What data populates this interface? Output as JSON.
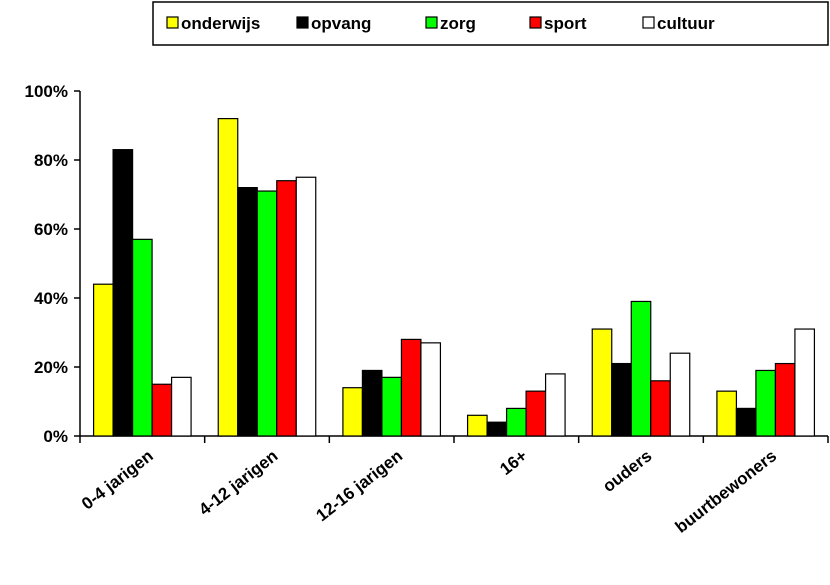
{
  "chart_data": {
    "type": "bar",
    "categories": [
      "0-4 jarigen",
      "4-12 jarigen",
      "12-16 jarigen",
      "16+",
      "ouders",
      "buurtbewoners"
    ],
    "series": [
      {
        "name": "onderwijs",
        "color": "#ffff00",
        "values": [
          44,
          92,
          14,
          6,
          31,
          13
        ]
      },
      {
        "name": "opvang",
        "color": "#000000",
        "values": [
          83,
          72,
          19,
          4,
          21,
          8
        ]
      },
      {
        "name": "zorg",
        "color": "#00ff00",
        "values": [
          57,
          71,
          17,
          8,
          39,
          19
        ]
      },
      {
        "name": "sport",
        "color": "#ff0000",
        "values": [
          15,
          74,
          28,
          13,
          16,
          21
        ]
      },
      {
        "name": "cultuur",
        "color": "#ffffff",
        "values": [
          17,
          75,
          27,
          18,
          24,
          31
        ]
      }
    ],
    "ylim": [
      0,
      100
    ],
    "yticks": [
      "0%",
      "20%",
      "40%",
      "60%",
      "80%",
      "100%"
    ],
    "legend_position": "top-right",
    "grid": false
  }
}
